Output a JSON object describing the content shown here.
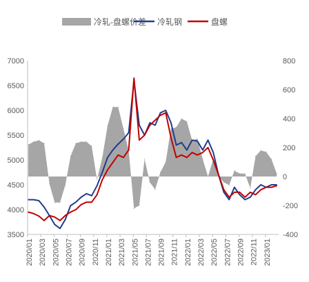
{
  "chart_data": {
    "type": "line",
    "title": "",
    "legend_position": "top",
    "grid": false,
    "x_tick_labels": [
      "2020/01",
      "2020/03",
      "2020/05",
      "2020/07",
      "2020/09",
      "2020/11",
      "2021/01",
      "2021/03",
      "2021/05",
      "2021/07",
      "2021/09",
      "2021/11",
      "2022/01",
      "2022/03",
      "2022/05",
      "2022/07",
      "2022/09",
      "2022/11",
      "2023/01"
    ],
    "left_axis": {
      "min": 3500,
      "max": 7000,
      "ticks": [
        3500,
        4000,
        4500,
        5000,
        5500,
        6000,
        6500,
        7000
      ]
    },
    "right_axis": {
      "min": -400,
      "max": 800,
      "ticks": [
        -400,
        -200,
        0,
        200,
        400,
        600,
        800
      ]
    },
    "series": [
      {
        "name": "冷轧-盘螺价差",
        "kind": "area",
        "axis": "right",
        "color": "#a6a6a6",
        "x": [
          0,
          0.4,
          0.8,
          1.2,
          1.6,
          2.0,
          2.4,
          2.8,
          3.2,
          3.6,
          4.0,
          4.4,
          4.8,
          5.2,
          5.6,
          6.0,
          6.4,
          6.8,
          7.2,
          7.6,
          8.0,
          8.4,
          8.8,
          9.2,
          9.6,
          10.0,
          10.4,
          10.8,
          11.2,
          11.6,
          12.0,
          12.4,
          12.8,
          13.2,
          13.6,
          14.0,
          14.4,
          14.8,
          15.2,
          15.6,
          16.0,
          16.4,
          16.8,
          17.2,
          17.6,
          18.0,
          18.4,
          18.8
        ],
        "values": [
          220,
          240,
          250,
          230,
          -50,
          -180,
          -180,
          -60,
          140,
          230,
          240,
          240,
          210,
          -20,
          130,
          350,
          480,
          480,
          330,
          180,
          -220,
          -200,
          120,
          -40,
          -90,
          30,
          100,
          330,
          340,
          400,
          380,
          250,
          260,
          120,
          0,
          120,
          0,
          -40,
          -60,
          40,
          20,
          20,
          -80,
          140,
          180,
          170,
          120,
          20
        ]
      },
      {
        "name": "冷轧钢",
        "kind": "line",
        "axis": "left",
        "color": "#1f3c8c",
        "x": [
          0,
          0.4,
          0.8,
          1.2,
          1.6,
          2.0,
          2.4,
          2.8,
          3.2,
          3.6,
          4.0,
          4.4,
          4.8,
          5.2,
          5.6,
          6.0,
          6.4,
          6.8,
          7.2,
          7.6,
          8.0,
          8.4,
          8.8,
          9.2,
          9.6,
          10.0,
          10.4,
          10.8,
          11.2,
          11.6,
          12.0,
          12.4,
          12.8,
          13.2,
          13.6,
          14.0,
          14.4,
          14.8,
          15.2,
          15.6,
          16.0,
          16.4,
          16.8,
          17.2,
          17.6,
          18.0,
          18.4,
          18.8
        ],
        "values": [
          4200,
          4200,
          4180,
          4050,
          3880,
          3700,
          3620,
          3800,
          4080,
          4150,
          4250,
          4320,
          4280,
          4480,
          4750,
          5050,
          5200,
          5320,
          5420,
          5550,
          6600,
          5700,
          5500,
          5750,
          5700,
          5950,
          6000,
          5750,
          5300,
          5350,
          5200,
          5400,
          5380,
          5200,
          5400,
          5150,
          4700,
          4350,
          4200,
          4450,
          4300,
          4200,
          4250,
          4400,
          4500,
          4450,
          4500,
          4500
        ]
      },
      {
        "name": "盘螺",
        "kind": "line",
        "axis": "left",
        "color": "#c00000",
        "x": [
          0,
          0.4,
          0.8,
          1.2,
          1.6,
          2.0,
          2.4,
          2.8,
          3.2,
          3.6,
          4.0,
          4.4,
          4.8,
          5.2,
          5.6,
          6.0,
          6.4,
          6.8,
          7.2,
          7.6,
          8.0,
          8.4,
          8.8,
          9.2,
          9.6,
          10.0,
          10.4,
          10.8,
          11.2,
          11.6,
          12.0,
          12.4,
          12.8,
          13.2,
          13.6,
          14.0,
          14.4,
          14.8,
          15.2,
          15.6,
          16.0,
          16.4,
          16.8,
          17.2,
          17.6,
          18.0,
          18.4,
          18.8
        ],
        "values": [
          3950,
          3920,
          3870,
          3780,
          3880,
          3850,
          3780,
          3880,
          3950,
          4000,
          4100,
          4150,
          4150,
          4300,
          4600,
          4800,
          4950,
          5100,
          5050,
          5200,
          6650,
          5400,
          5500,
          5700,
          5800,
          5900,
          5950,
          5450,
          5050,
          5100,
          5050,
          5150,
          5100,
          5150,
          5250,
          5000,
          4700,
          4400,
          4250,
          4350,
          4350,
          4250,
          4350,
          4300,
          4400,
          4450,
          4450,
          4480
        ]
      }
    ]
  }
}
